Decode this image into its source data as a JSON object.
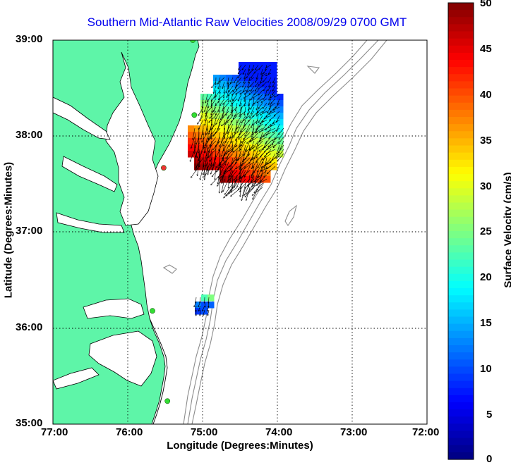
{
  "title": "Southern Mid-Atlantic Raw Velocities 2008/09/29 0700 GMT",
  "map": {
    "xlabel": "Longitude (Degrees:Minutes)",
    "ylabel": "Latitude (Degrees:Minutes)",
    "x_ticks": [
      "77:00",
      "76:00",
      "75:00",
      "74:00",
      "73:00",
      "72:00"
    ],
    "y_ticks": [
      "39:00",
      "38:00",
      "37:00",
      "36:00",
      "35:00"
    ],
    "lon_range": [
      -77,
      -72
    ],
    "lat_range": [
      35,
      39
    ],
    "grid": true,
    "land_color": "#5ef5a8",
    "coast_color": "#000000",
    "bathymetry_color": "#8c8c8c"
  },
  "colorbar": {
    "label": "Surface Velocity (cm/s)",
    "ticks": [
      "50",
      "45",
      "40",
      "35",
      "30",
      "25",
      "20",
      "15",
      "10",
      "5",
      "0"
    ],
    "range": [
      0,
      50
    ],
    "colormap": "jet"
  },
  "stations": [
    {
      "lon": -75.13,
      "lat": 39.0,
      "color": "#33dd33"
    },
    {
      "lon": -75.11,
      "lat": 38.22,
      "color": "#33dd33"
    },
    {
      "lon": -75.52,
      "lat": 37.67,
      "color": "#ee3333"
    },
    {
      "lon": -75.67,
      "lat": 36.18,
      "color": "#33dd33"
    },
    {
      "lon": -75.47,
      "lat": 35.24,
      "color": "#33dd33"
    }
  ]
}
